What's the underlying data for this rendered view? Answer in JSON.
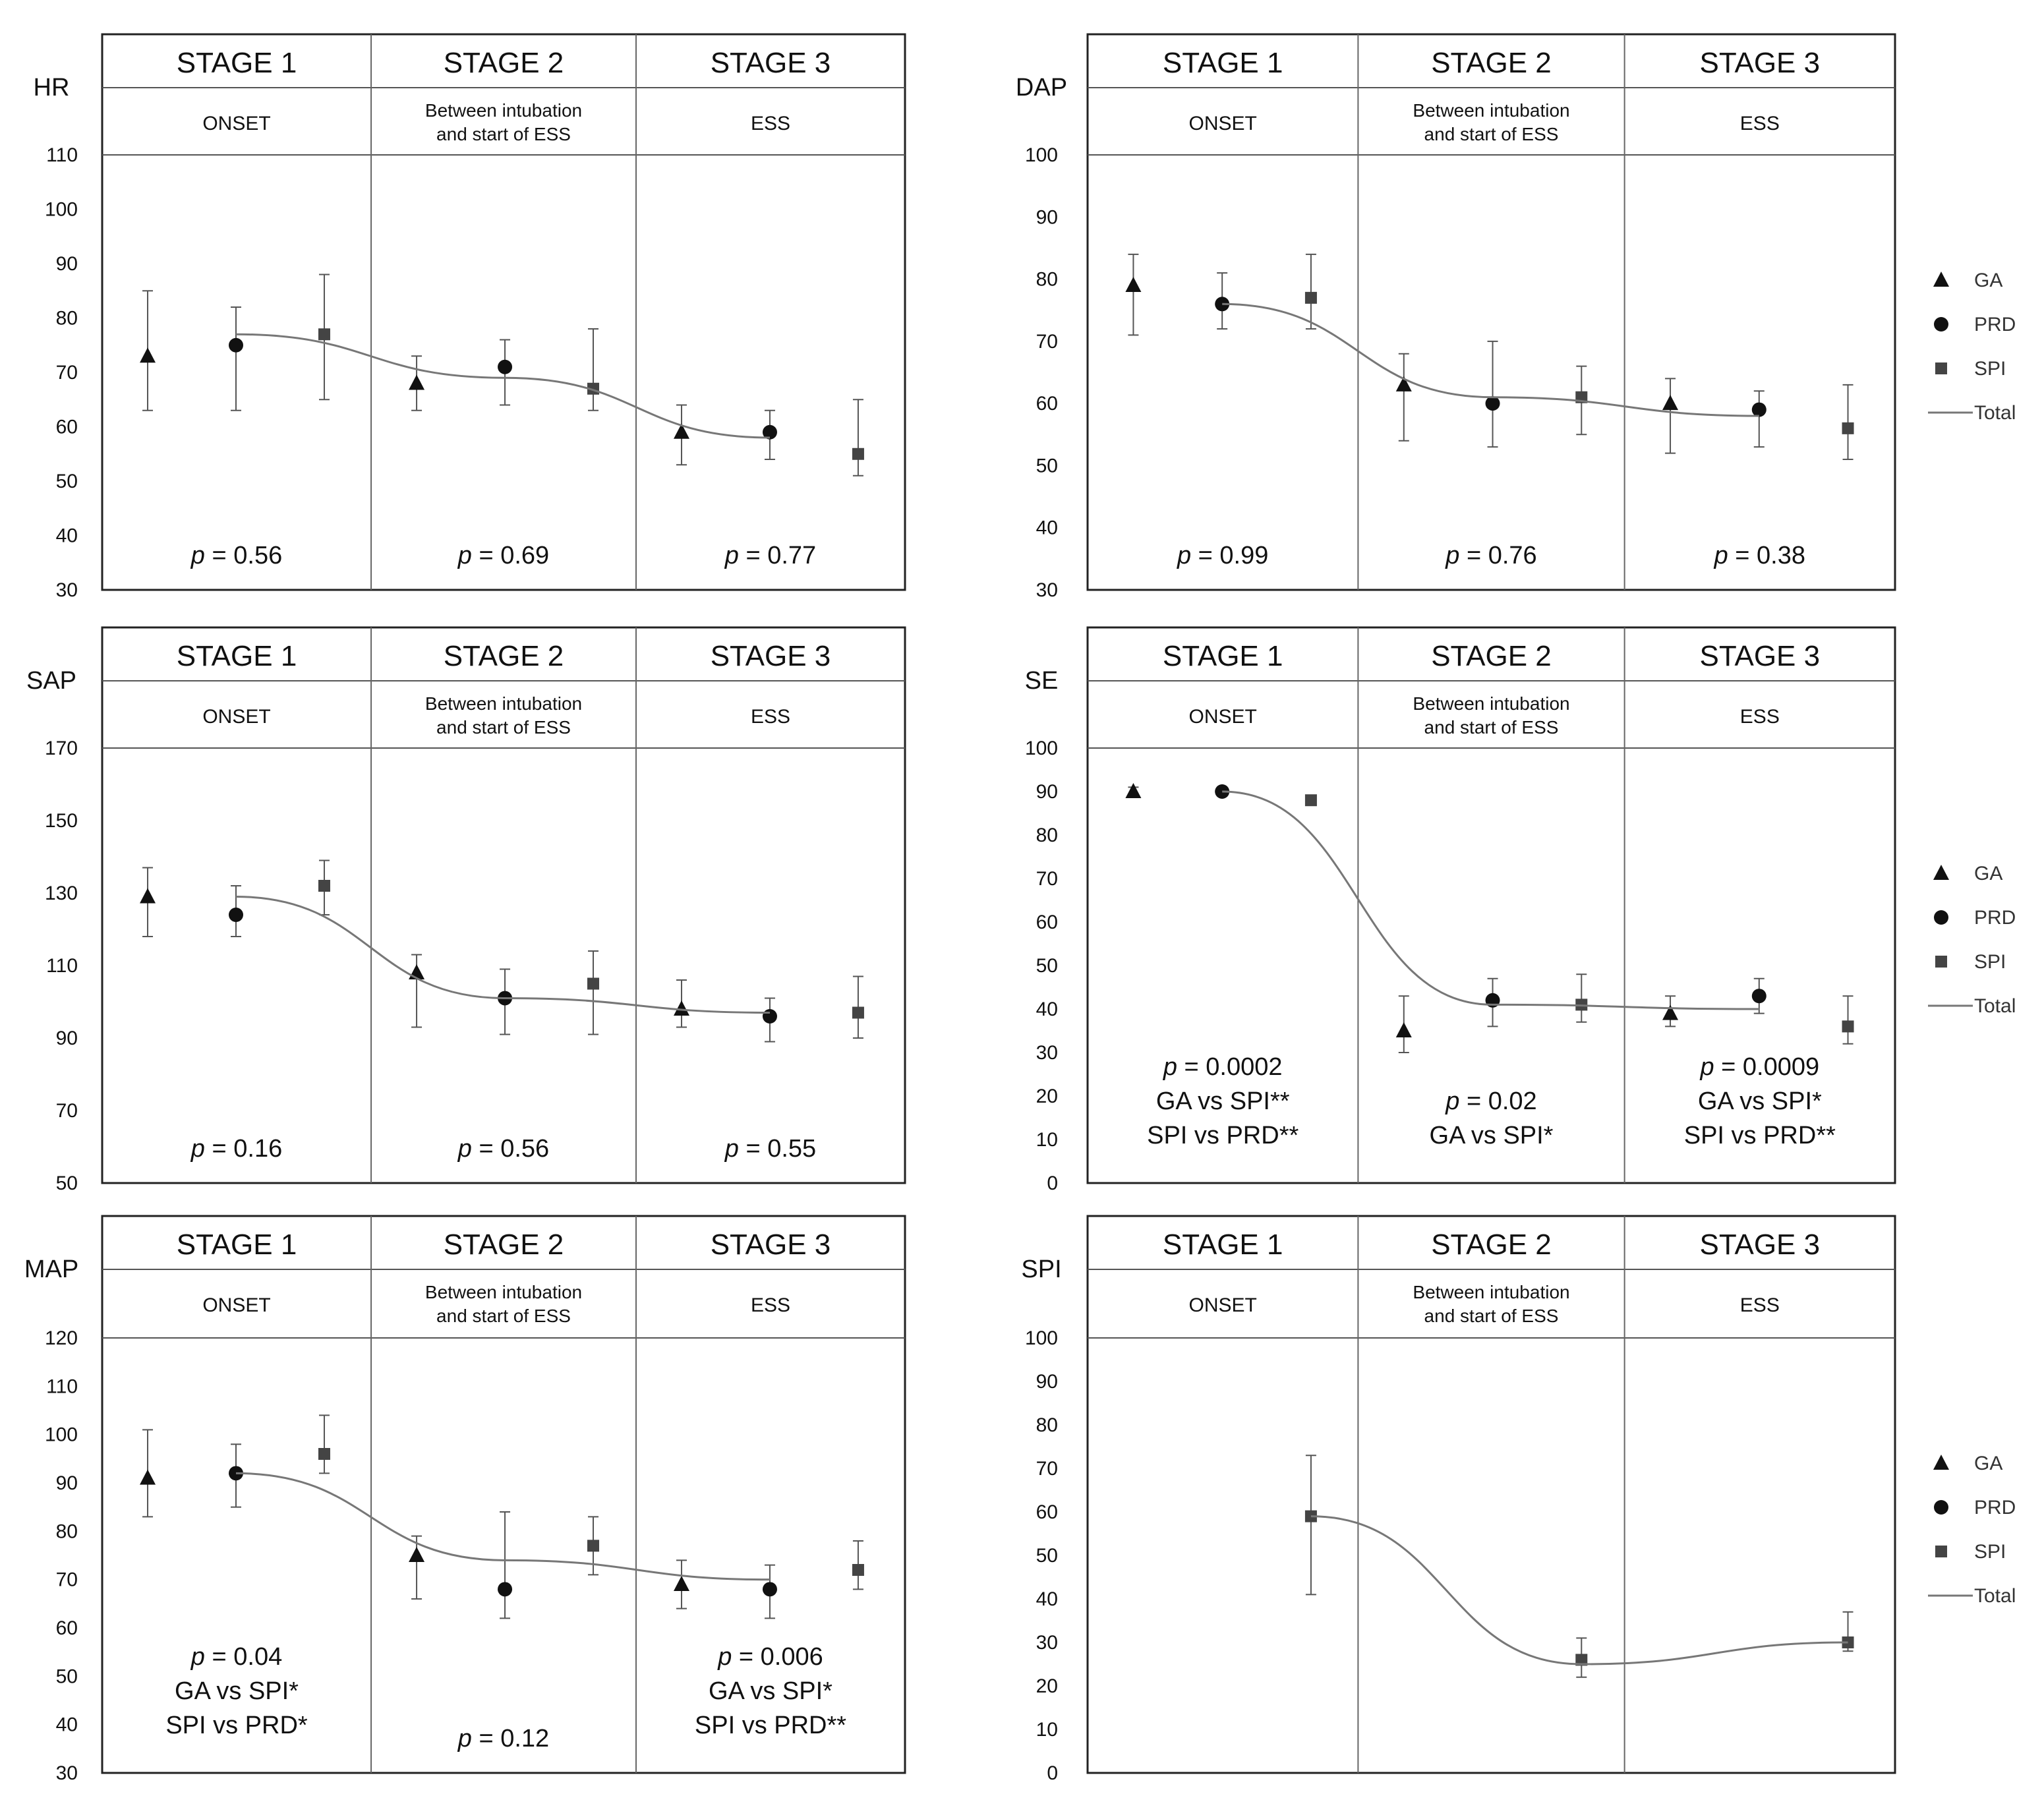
{
  "figure": {
    "description_visible": false
  },
  "legend": {
    "items": [
      {
        "key": "GA",
        "label": "GA",
        "marker": "triangle"
      },
      {
        "key": "PRD",
        "label": "PRD",
        "marker": "circle"
      },
      {
        "key": "SPI",
        "label": "SPI",
        "marker": "square"
      },
      {
        "key": "Total",
        "label": "Total",
        "marker": "line"
      }
    ]
  },
  "chart_data": [
    {
      "type": "scatter",
      "id": "hr",
      "title": "HR",
      "ylim": [
        30,
        110
      ],
      "yticks": [
        30,
        40,
        50,
        60,
        70,
        80,
        90,
        100,
        110
      ],
      "stages": [
        {
          "title": "STAGE 1",
          "phase": "ONSET",
          "phase_small": false,
          "pvalue": "= 0.56",
          "comparisons": []
        },
        {
          "title": "STAGE 2",
          "phase": "Between intubation and start of ESS",
          "phase_small": true,
          "pvalue": "= 0.69",
          "comparisons": []
        },
        {
          "title": "STAGE 3",
          "phase": "ESS",
          "phase_small": false,
          "pvalue": "= 0.77",
          "comparisons": []
        }
      ],
      "series": [
        {
          "name": "GA",
          "stage": [
            1,
            2,
            3
          ],
          "mean": [
            73,
            68,
            59
          ],
          "low": [
            63,
            63,
            53
          ],
          "high": [
            85,
            73,
            64
          ]
        },
        {
          "name": "PRD",
          "stage": [
            1,
            2,
            3
          ],
          "mean": [
            75,
            71,
            59
          ],
          "low": [
            63,
            64,
            54
          ],
          "high": [
            82,
            76,
            63
          ]
        },
        {
          "name": "SPI",
          "stage": [
            1,
            2,
            3
          ],
          "mean": [
            77,
            67,
            55
          ],
          "low": [
            65,
            63,
            51
          ],
          "high": [
            88,
            78,
            65
          ]
        }
      ],
      "total": [
        77,
        69,
        58
      ],
      "show_legend": false
    },
    {
      "type": "scatter",
      "id": "dap",
      "title": "DAP",
      "ylim": [
        30,
        100
      ],
      "yticks": [
        30,
        40,
        50,
        60,
        70,
        80,
        90,
        100
      ],
      "stages": [
        {
          "title": "STAGE 1",
          "phase": "ONSET",
          "phase_small": false,
          "pvalue": "= 0.99",
          "comparisons": []
        },
        {
          "title": "STAGE 2",
          "phase": "Between intubation and start of ESS",
          "phase_small": true,
          "pvalue": "= 0.76",
          "comparisons": []
        },
        {
          "title": "STAGE 3",
          "phase": "ESS",
          "phase_small": false,
          "pvalue": "= 0.38",
          "comparisons": []
        }
      ],
      "series": [
        {
          "name": "GA",
          "stage": [
            1,
            2,
            3
          ],
          "mean": [
            79,
            63,
            60
          ],
          "low": [
            71,
            54,
            52
          ],
          "high": [
            84,
            68,
            64
          ]
        },
        {
          "name": "PRD",
          "stage": [
            1,
            2,
            3
          ],
          "mean": [
            76,
            60,
            59
          ],
          "low": [
            72,
            53,
            53
          ],
          "high": [
            81,
            70,
            62
          ]
        },
        {
          "name": "SPI",
          "stage": [
            1,
            2,
            3
          ],
          "mean": [
            77,
            61,
            56
          ],
          "low": [
            72,
            55,
            51
          ],
          "high": [
            84,
            66,
            63
          ]
        }
      ],
      "total": [
        76,
        61,
        58
      ],
      "show_legend": true
    },
    {
      "type": "scatter",
      "id": "sap",
      "title": "SAP",
      "ylim": [
        50,
        170
      ],
      "yticks": [
        50,
        70,
        90,
        110,
        130,
        150,
        170
      ],
      "stages": [
        {
          "title": "STAGE 1",
          "phase": "ONSET",
          "phase_small": false,
          "pvalue": "= 0.16",
          "comparisons": []
        },
        {
          "title": "STAGE 2",
          "phase": "Between intubation and start of ESS",
          "phase_small": true,
          "pvalue": "= 0.56",
          "comparisons": []
        },
        {
          "title": "STAGE 3",
          "phase": "ESS",
          "phase_small": false,
          "pvalue": "= 0.55",
          "comparisons": []
        }
      ],
      "series": [
        {
          "name": "GA",
          "stage": [
            1,
            2,
            3
          ],
          "mean": [
            129,
            108,
            98
          ],
          "low": [
            118,
            93,
            93
          ],
          "high": [
            137,
            113,
            106
          ]
        },
        {
          "name": "PRD",
          "stage": [
            1,
            2,
            3
          ],
          "mean": [
            124,
            101,
            96
          ],
          "low": [
            118,
            91,
            89
          ],
          "high": [
            132,
            109,
            101
          ]
        },
        {
          "name": "SPI",
          "stage": [
            1,
            2,
            3
          ],
          "mean": [
            132,
            105,
            97
          ],
          "low": [
            124,
            91,
            90
          ],
          "high": [
            139,
            114,
            107
          ]
        }
      ],
      "total": [
        129,
        101,
        97
      ],
      "show_legend": false
    },
    {
      "type": "scatter",
      "id": "se",
      "title": "SE",
      "ylim": [
        0,
        100
      ],
      "yticks": [
        0,
        10,
        20,
        30,
        40,
        50,
        60,
        70,
        80,
        90,
        100
      ],
      "stages": [
        {
          "title": "STAGE 1",
          "phase": "ONSET",
          "phase_small": false,
          "pvalue": "= 0.0002",
          "comparisons": [
            "GA vs SPI**",
            "SPI vs PRD**"
          ]
        },
        {
          "title": "STAGE 2",
          "phase": "Between intubation and start of ESS",
          "phase_small": true,
          "pvalue": "= 0.02",
          "comparisons": [
            "GA vs SPI*"
          ]
        },
        {
          "title": "STAGE 3",
          "phase": "ESS",
          "phase_small": false,
          "pvalue": "= 0.0009",
          "comparisons": [
            "GA vs SPI*",
            "SPI vs PRD**"
          ]
        }
      ],
      "series": [
        {
          "name": "GA",
          "stage": [
            1,
            2,
            3
          ],
          "mean": [
            90,
            35,
            39
          ],
          "low": [
            89,
            30,
            36
          ],
          "high": [
            91,
            43,
            43
          ]
        },
        {
          "name": "PRD",
          "stage": [
            1,
            2,
            3
          ],
          "mean": [
            90,
            42,
            43
          ],
          "low": [
            89,
            36,
            39
          ],
          "high": [
            91,
            47,
            47
          ]
        },
        {
          "name": "SPI",
          "stage": [
            1,
            2,
            3
          ],
          "mean": [
            88,
            41,
            36
          ],
          "low": [
            87,
            37,
            32
          ],
          "high": [
            89,
            48,
            43
          ]
        }
      ],
      "total": [
        90,
        41,
        40
      ],
      "show_legend": true
    },
    {
      "type": "scatter",
      "id": "map",
      "title": "MAP",
      "ylim": [
        30,
        120
      ],
      "yticks": [
        30,
        40,
        50,
        60,
        70,
        80,
        90,
        100,
        110,
        120
      ],
      "stages": [
        {
          "title": "STAGE 1",
          "phase": "ONSET",
          "phase_small": false,
          "pvalue": "= 0.04",
          "comparisons": [
            "GA vs SPI*",
            "SPI vs PRD*"
          ]
        },
        {
          "title": "STAGE 2",
          "phase": "Between intubation and start of ESS",
          "phase_small": true,
          "pvalue": "= 0.12",
          "comparisons": []
        },
        {
          "title": "STAGE 3",
          "phase": "ESS",
          "phase_small": false,
          "pvalue": "= 0.006",
          "comparisons": [
            "GA vs SPI*",
            "SPI vs PRD**"
          ]
        }
      ],
      "series": [
        {
          "name": "GA",
          "stage": [
            1,
            2,
            3
          ],
          "mean": [
            91,
            75,
            69
          ],
          "low": [
            83,
            66,
            64
          ],
          "high": [
            101,
            79,
            74
          ]
        },
        {
          "name": "PRD",
          "stage": [
            1,
            2,
            3
          ],
          "mean": [
            92,
            68,
            68
          ],
          "low": [
            85,
            62,
            62
          ],
          "high": [
            98,
            84,
            73
          ]
        },
        {
          "name": "SPI",
          "stage": [
            1,
            2,
            3
          ],
          "mean": [
            96,
            77,
            72
          ],
          "low": [
            92,
            71,
            68
          ],
          "high": [
            104,
            83,
            78
          ]
        }
      ],
      "total": [
        92,
        74,
        70
      ],
      "show_legend": false
    },
    {
      "type": "scatter",
      "id": "spi",
      "title": "SPI",
      "ylim": [
        0,
        100
      ],
      "yticks": [
        0,
        10,
        20,
        30,
        40,
        50,
        60,
        70,
        80,
        90,
        100
      ],
      "stages": [
        {
          "title": "STAGE 1",
          "phase": "ONSET",
          "phase_small": false,
          "pvalue": "",
          "comparisons": []
        },
        {
          "title": "STAGE 2",
          "phase": "Between intubation and start of ESS",
          "phase_small": true,
          "pvalue": "",
          "comparisons": []
        },
        {
          "title": "STAGE 3",
          "phase": "ESS",
          "phase_small": false,
          "pvalue": "",
          "comparisons": []
        }
      ],
      "series": [
        {
          "name": "SPI",
          "stage": [
            1,
            2,
            3
          ],
          "mean": [
            59,
            26,
            30
          ],
          "low": [
            41,
            22,
            28
          ],
          "high": [
            73,
            31,
            37
          ]
        }
      ],
      "total": [
        59,
        25,
        30
      ],
      "show_legend": true
    }
  ]
}
